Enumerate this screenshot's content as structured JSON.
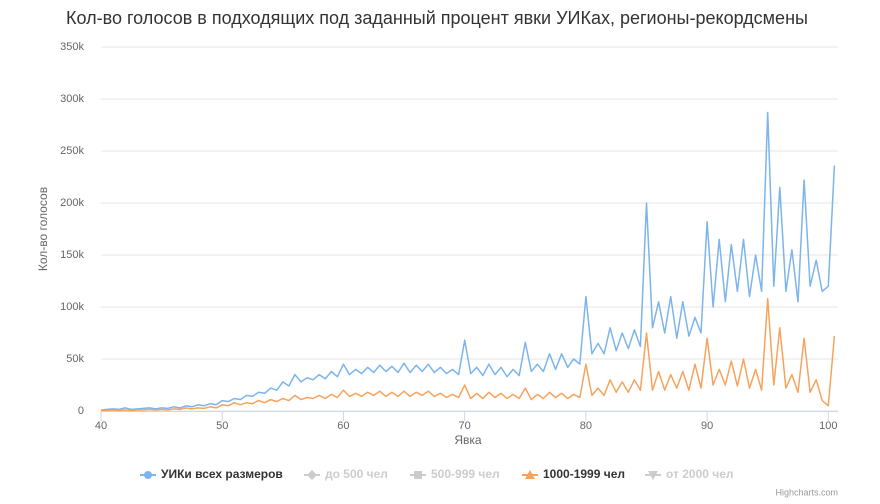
{
  "chart_data": {
    "type": "line",
    "title": "Кол-во голосов в подходящих под заданный процент явки УИКах, регионы-рекордсмены",
    "x_label": "Явка",
    "y_label": "Кол-во голосов",
    "credits": "Highcharts.com",
    "xlim": [
      40,
      100.8
    ],
    "xticks": [
      40,
      50,
      60,
      70,
      80,
      90,
      100
    ],
    "ylim": [
      0,
      350000
    ],
    "yticks": [
      0,
      {
        "value": 50000,
        "label": "50k"
      },
      {
        "value": 100000,
        "label": "100k"
      },
      {
        "value": 150000,
        "label": "150k"
      },
      {
        "value": 200000,
        "label": "200k"
      },
      {
        "value": 250000,
        "label": "250k"
      },
      {
        "value": 300000,
        "label": "300k"
      },
      {
        "value": 350000,
        "label": "350k"
      }
    ],
    "grid": true,
    "legend": "bottom",
    "hidden_color": "#cccccc",
    "x": [
      40,
      40.5,
      41,
      41.5,
      42,
      42.5,
      43,
      43.5,
      44,
      44.5,
      45,
      45.5,
      46,
      46.5,
      47,
      47.5,
      48,
      48.5,
      49,
      49.5,
      50,
      50.5,
      51,
      51.5,
      52,
      52.5,
      53,
      53.5,
      54,
      54.5,
      55,
      55.5,
      56,
      56.5,
      57,
      57.5,
      58,
      58.5,
      59,
      59.5,
      60,
      60.5,
      61,
      61.5,
      62,
      62.5,
      63,
      63.5,
      64,
      64.5,
      65,
      65.5,
      66,
      66.5,
      67,
      67.5,
      68,
      68.5,
      69,
      69.5,
      70,
      70.5,
      71,
      71.5,
      72,
      72.5,
      73,
      73.5,
      74,
      74.5,
      75,
      75.5,
      76,
      76.5,
      77,
      77.5,
      78,
      78.5,
      79,
      79.5,
      80,
      80.5,
      81,
      81.5,
      82,
      82.5,
      83,
      83.5,
      84,
      84.5,
      85,
      85.5,
      86,
      86.5,
      87,
      87.5,
      88,
      88.5,
      89,
      89.5,
      90,
      90.5,
      91,
      91.5,
      92,
      92.5,
      93,
      93.5,
      94,
      94.5,
      95,
      95.5,
      96,
      96.5,
      97,
      97.5,
      98,
      98.5,
      99,
      99.5,
      100,
      100.5
    ],
    "series": [
      {
        "name": "УИКи всех размеров",
        "color": "#7cb5ec",
        "marker": "circle",
        "visible": true,
        "values": [
          1000,
          1500,
          2000,
          1500,
          3000,
          1500,
          2000,
          2500,
          3000,
          2000,
          3000,
          2500,
          4000,
          3000,
          5000,
          4000,
          6000,
          5000,
          7000,
          6000,
          10000,
          9000,
          12000,
          11000,
          15000,
          14000,
          18000,
          17000,
          22000,
          20000,
          28000,
          24000,
          35000,
          28000,
          32000,
          30000,
          35000,
          31000,
          38000,
          33000,
          45000,
          35000,
          40000,
          36000,
          42000,
          37000,
          44000,
          38000,
          43000,
          37000,
          46000,
          37000,
          44000,
          38000,
          45000,
          37000,
          42000,
          36000,
          40000,
          35000,
          68000,
          36000,
          42000,
          34000,
          45000,
          35000,
          42000,
          33000,
          40000,
          34000,
          66000,
          38000,
          45000,
          38000,
          55000,
          40000,
          55000,
          42000,
          50000,
          45000,
          110000,
          55000,
          65000,
          55000,
          80000,
          58000,
          75000,
          60000,
          78000,
          62000,
          200000,
          80000,
          105000,
          75000,
          110000,
          70000,
          105000,
          72000,
          90000,
          75000,
          182000,
          100000,
          165000,
          105000,
          160000,
          115000,
          165000,
          110000,
          150000,
          115000,
          287000,
          120000,
          215000,
          115000,
          155000,
          105000,
          222000,
          120000,
          145000,
          115000,
          120000,
          236000
        ]
      },
      {
        "name": "до 500 чел",
        "marker": "diamond",
        "visible": false
      },
      {
        "name": "500-999 чел",
        "marker": "square",
        "visible": false
      },
      {
        "name": "1000-1999 чел",
        "color": "#f7a35c",
        "marker": "triangle",
        "visible": true,
        "values": [
          500,
          500,
          1000,
          500,
          1000,
          500,
          1000,
          1000,
          1500,
          1000,
          1500,
          1000,
          2000,
          1500,
          3000,
          2000,
          3000,
          2500,
          4000,
          3000,
          6000,
          5000,
          8000,
          6000,
          8000,
          7000,
          10000,
          8000,
          11000,
          9000,
          12000,
          10000,
          15000,
          11000,
          13000,
          12000,
          15000,
          12000,
          16000,
          13000,
          20000,
          14000,
          17000,
          14000,
          18000,
          15000,
          19000,
          14000,
          18000,
          14000,
          19000,
          14000,
          18000,
          15000,
          19000,
          14000,
          17000,
          13000,
          16000,
          13000,
          25000,
          12000,
          17000,
          12000,
          18000,
          13000,
          17000,
          12000,
          16000,
          12000,
          22000,
          11000,
          16000,
          12000,
          18000,
          13000,
          17000,
          12000,
          16000,
          13000,
          45000,
          15000,
          22000,
          15000,
          30000,
          18000,
          28000,
          18000,
          30000,
          20000,
          75000,
          20000,
          38000,
          20000,
          35000,
          22000,
          38000,
          20000,
          45000,
          22000,
          70000,
          25000,
          40000,
          25000,
          48000,
          24000,
          50000,
          22000,
          40000,
          20000,
          108000,
          25000,
          80000,
          22000,
          35000,
          18000,
          70000,
          18000,
          30000,
          10000,
          5000,
          72000
        ]
      },
      {
        "name": "от 2000 чел",
        "marker": "triangle-down",
        "visible": false
      }
    ]
  }
}
